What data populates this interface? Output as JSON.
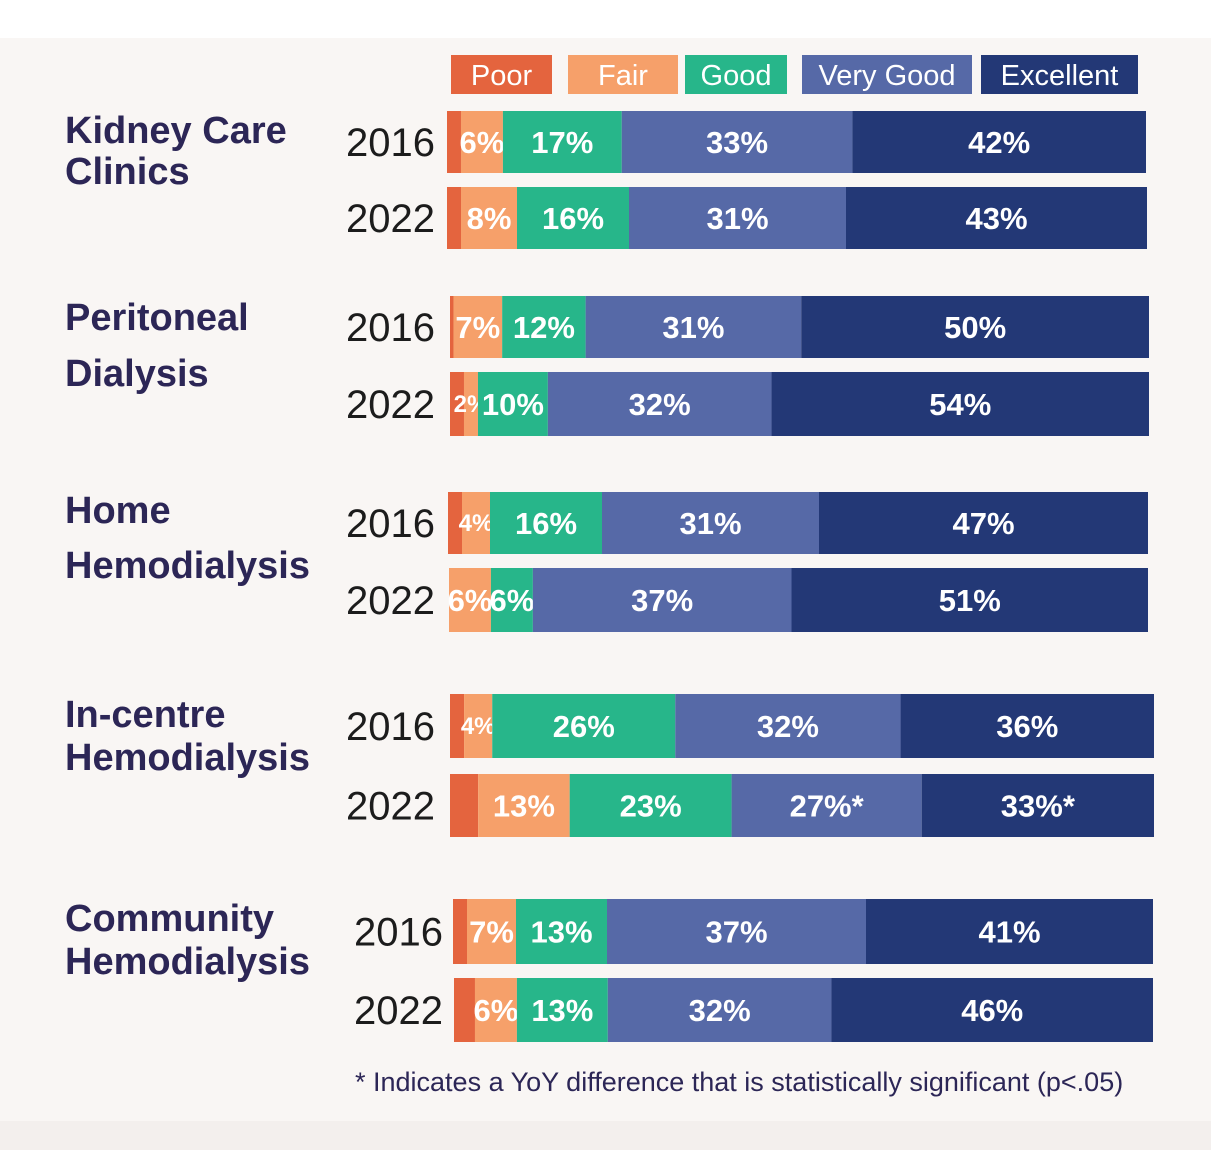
{
  "chart_data": {
    "type": "bar",
    "orientation": "horizontal",
    "stacked": true,
    "legend": {
      "placement": "top",
      "entries": [
        {
          "name": "Poor",
          "color": "#e4643e"
        },
        {
          "name": "Fair",
          "color": "#f6a06a"
        },
        {
          "name": "Good",
          "color": "#27b68a"
        },
        {
          "name": "Very Good",
          "color": "#5669a7"
        },
        {
          "name": "Excellent",
          "color": "#233876"
        }
      ]
    },
    "xlim": [
      0,
      100
    ],
    "groups": [
      {
        "name": "Kidney Care Clinics",
        "rows": [
          {
            "year": "2016",
            "values": [
              2,
              6,
              17,
              33,
              42
            ],
            "labels": [
              "",
              "6%",
              "17%",
              "33%",
              "42%"
            ]
          },
          {
            "year": "2022",
            "values": [
              2,
              8,
              16,
              31,
              43
            ],
            "labels": [
              "",
              "8%",
              "16%",
              "31%",
              "43%"
            ]
          }
        ]
      },
      {
        "name": "Peritoneal Dialysis",
        "rows": [
          {
            "year": "2016",
            "values": [
              0.5,
              7,
              12,
              31,
              50
            ],
            "labels": [
              "",
              "7%",
              "12%",
              "31%",
              "50%"
            ]
          },
          {
            "year": "2022",
            "values": [
              2,
              2,
              10,
              32,
              54
            ],
            "labels": [
              "",
              "2%",
              "10%",
              "32%",
              "54%"
            ]
          }
        ]
      },
      {
        "name": "Home Hemodialysis",
        "rows": [
          {
            "year": "2016",
            "values": [
              2,
              4,
              16,
              31,
              47
            ],
            "labels": [
              "",
              "4%",
              "16%",
              "31%",
              "47%"
            ]
          },
          {
            "year": "2022",
            "values": [
              0,
              6,
              6,
              37,
              51
            ],
            "labels": [
              "",
              "6%",
              "6%",
              "37%",
              "51%"
            ]
          }
        ]
      },
      {
        "name": "In-centre Hemodialysis",
        "rows": [
          {
            "year": "2016",
            "values": [
              2,
              4,
              26,
              32,
              36
            ],
            "labels": [
              "",
              "4%",
              "26%",
              "32%",
              "36%"
            ]
          },
          {
            "year": "2022",
            "values": [
              4,
              13,
              23,
              27,
              33
            ],
            "labels": [
              "",
              "13%",
              "23%",
              "27%*",
              "33%*"
            ]
          }
        ]
      },
      {
        "name": "Community Hemodialysis",
        "rows": [
          {
            "year": "2016",
            "values": [
              2,
              7,
              13,
              37,
              41
            ],
            "labels": [
              "",
              "7%",
              "13%",
              "37%",
              "41%"
            ]
          },
          {
            "year": "2022",
            "values": [
              3,
              6,
              13,
              32,
              46
            ],
            "labels": [
              "",
              "6%",
              "13%",
              "32%",
              "46%"
            ]
          }
        ]
      }
    ]
  },
  "footnote": "* Indicates a YoY difference that is statistically significant (p<.05)"
}
